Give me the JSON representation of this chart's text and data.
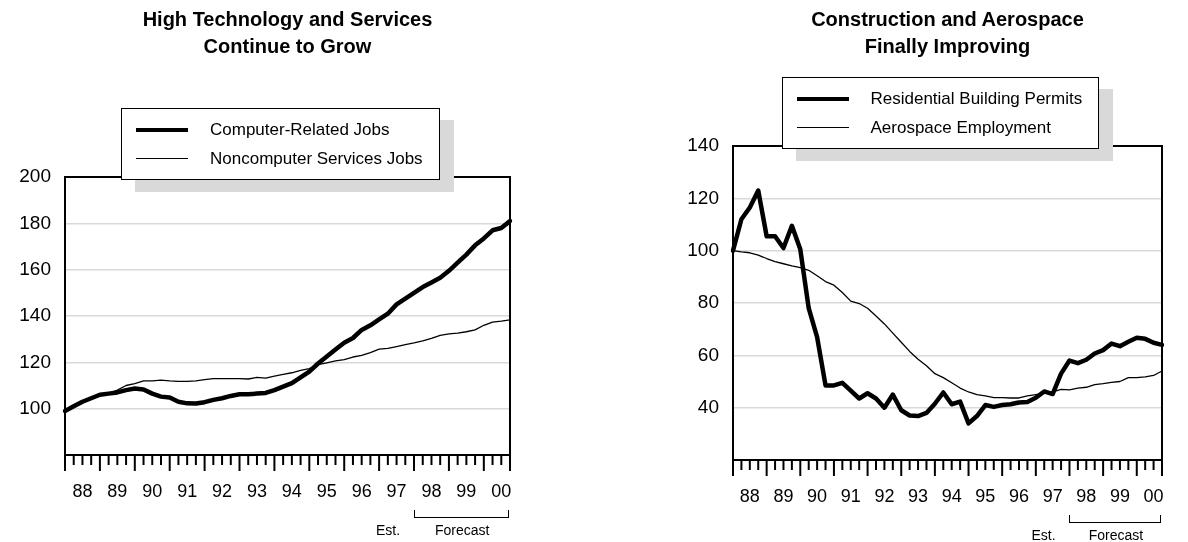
{
  "chart_data": [
    {
      "type": "line",
      "title": "High Technology and Services Continue to Grow",
      "legend": "top",
      "grid": "y",
      "categories": [
        null,
        null,
        "88",
        null,
        null,
        null,
        "89",
        null,
        null,
        null,
        "90",
        null,
        null,
        null,
        "91",
        null,
        null,
        null,
        "92",
        null,
        null,
        null,
        "93",
        null,
        null,
        null,
        "94",
        null,
        null,
        null,
        "95",
        null,
        null,
        null,
        "96",
        null,
        null,
        null,
        "97",
        null,
        null,
        null,
        "98",
        null,
        null,
        null,
        "99",
        null,
        null,
        null,
        "00",
        null
      ],
      "series": [
        {
          "name": "Computer-Related Jobs",
          "color": "#000000",
          "values": [
            99,
            101,
            103,
            104.5,
            106,
            106.5,
            107,
            108,
            108.7,
            108.3,
            106.5,
            105.2,
            104.8,
            103,
            102.3,
            102.2,
            102.8,
            103.8,
            104.5,
            105.5,
            106.2,
            106.2,
            106.5,
            106.8,
            108,
            109.5,
            111,
            113.5,
            116,
            119.5,
            122.5,
            125.5,
            128.5,
            130.5,
            134,
            136,
            138.5,
            141,
            145,
            147.5,
            150,
            152.5,
            154.5,
            156.5,
            159.5,
            163,
            166.5,
            170.5,
            173.5,
            177,
            178,
            181
          ]
        },
        {
          "name": "Noncomputer Services Jobs",
          "color": "#000000",
          "values": [
            99.5,
            101,
            103,
            104.5,
            106,
            106.5,
            108,
            110,
            110.8,
            112,
            112,
            112.3,
            112,
            111.8,
            111.8,
            112,
            112.5,
            113,
            113,
            113,
            113,
            112.8,
            113.5,
            113.2,
            114,
            114.8,
            115.5,
            116.5,
            117.3,
            119,
            119.8,
            120.6,
            121.2,
            122.3,
            123,
            124.2,
            125.7,
            126,
            126.8,
            127.6,
            128.4,
            129.3,
            130.3,
            131.6,
            132.3,
            132.6,
            133.2,
            134,
            136,
            137.4,
            137.8,
            138.3
          ]
        }
      ],
      "ylim": [
        80,
        200
      ],
      "yticks": [
        100,
        120,
        140,
        160,
        180,
        200
      ],
      "annotations": [
        "Est.",
        "Forecast"
      ]
    },
    {
      "type": "line",
      "title": "Construction and Aerospace Finally Improving",
      "legend": "top",
      "grid": "y",
      "categories": [
        null,
        null,
        "88",
        null,
        null,
        null,
        "89",
        null,
        null,
        null,
        "90",
        null,
        null,
        null,
        "91",
        null,
        null,
        null,
        "92",
        null,
        null,
        null,
        "93",
        null,
        null,
        null,
        "94",
        null,
        null,
        null,
        "95",
        null,
        null,
        null,
        "96",
        null,
        null,
        null,
        "97",
        null,
        null,
        null,
        "98",
        null,
        null,
        null,
        "99",
        null,
        null,
        null,
        "00",
        null
      ],
      "series": [
        {
          "name": "Residential Building Permits",
          "color": "#000000",
          "values": [
            100,
            112,
            116.5,
            123,
            105.5,
            105.5,
            101,
            109.5,
            100.5,
            78,
            67,
            48.5,
            48.5,
            49.5,
            46.5,
            43.5,
            45.5,
            43.5,
            40,
            45,
            39,
            37,
            36.8,
            38,
            41.5,
            45.8,
            41.3,
            42.3,
            34,
            36.8,
            41,
            40.3,
            41,
            41.3,
            42,
            42.2,
            43.8,
            46.2,
            45.2,
            53,
            58,
            57,
            58.3,
            60.7,
            62,
            64.5,
            63.5,
            65.2,
            66.7,
            66.3,
            64.8,
            64
          ]
        },
        {
          "name": "Aerospace Employment",
          "color": "#000000",
          "values": [
            100,
            99.5,
            99.2,
            98.3,
            97,
            95.8,
            95,
            94.2,
            93.5,
            92.5,
            90.4,
            88.2,
            86.8,
            84,
            80.7,
            79.8,
            78,
            75,
            72,
            68.5,
            65,
            61.5,
            58.5,
            56,
            53,
            51.5,
            49.5,
            47.5,
            46,
            45,
            44.5,
            43.8,
            43.8,
            43.7,
            43.7,
            44.5,
            45,
            45.5,
            46,
            47,
            46.8,
            47.5,
            47.8,
            48.8,
            49.2,
            49.7,
            50,
            51.5,
            51.5,
            51.8,
            52.3,
            54
          ]
        }
      ],
      "ylim": [
        20,
        140
      ],
      "yticks": [
        40,
        60,
        80,
        100,
        120,
        140
      ],
      "annotations": [
        "Est.",
        "Forecast"
      ]
    }
  ]
}
